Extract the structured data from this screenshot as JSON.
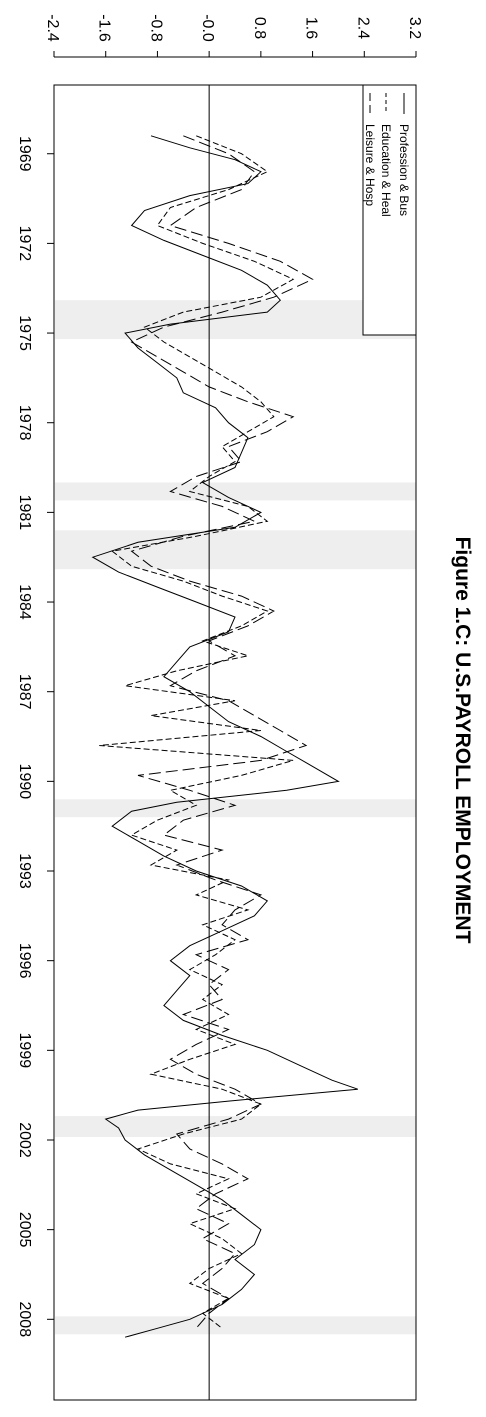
{
  "chart_data": {
    "type": "line",
    "title": "Figure 1.C: U.S.PAYROLL EMPLOYMENT",
    "xlabel": "",
    "ylabel": "",
    "orientation": "rotated-90-clockwise",
    "xlim": [
      1966.7,
      2010.7
    ],
    "ylim": [
      -2.4,
      3.2
    ],
    "x_ticks": [
      1969,
      1972,
      1975,
      1978,
      1981,
      1984,
      1987,
      1990,
      1993,
      1996,
      1999,
      2002,
      2005,
      2008
    ],
    "x_tick_labels": [
      "1969",
      "1972",
      "1975",
      "1978",
      "1981",
      "1984",
      "1987",
      "1990",
      "1993",
      "1996",
      "1999",
      "2002",
      "2005",
      "2008"
    ],
    "y_ticks": [
      -2.4,
      -1.6,
      -0.8,
      0.0,
      0.8,
      1.6,
      2.4,
      3.2
    ],
    "y_tick_labels": [
      "-2.4",
      "-1.6",
      "-0.8",
      "-0.0",
      "0.8",
      "1.6",
      "2.4",
      "3.2"
    ],
    "zero_line": 0,
    "recessions": [
      [
        1973.9,
        1975.2
      ],
      [
        1980.0,
        1980.6
      ],
      [
        1981.6,
        1982.9
      ],
      [
        1990.6,
        1991.2
      ],
      [
        2001.2,
        2001.9
      ],
      [
        2007.9,
        2008.5
      ]
    ],
    "legend_position": "top-right",
    "series": [
      {
        "name": "Profession & Bus",
        "style": "solid",
        "x": [
          1968.4,
          1968.8,
          1969.2,
          1969.6,
          1970.0,
          1970.4,
          1970.9,
          1971.4,
          1971.9,
          1972.4,
          1972.9,
          1973.4,
          1973.9,
          1974.3,
          1974.7,
          1975.0,
          1975.5,
          1976.0,
          1976.5,
          1977.0,
          1977.5,
          1978.0,
          1978.5,
          1979.0,
          1979.5,
          1980.0,
          1980.5,
          1981.0,
          1981.5,
          1982.0,
          1982.5,
          1983.0,
          1983.5,
          1984.0,
          1984.5,
          1985.0,
          1985.5,
          1986.0,
          1986.5,
          1987.0,
          1987.5,
          1988.0,
          1988.5,
          1989.0,
          1989.5,
          1990.0,
          1990.3,
          1990.7,
          1991.0,
          1991.5,
          1992.0,
          1992.5,
          1993.0,
          1993.5,
          1994.0,
          1994.5,
          1995.0,
          1995.5,
          1996.0,
          1996.5,
          1997.0,
          1997.5,
          1998.0,
          1998.5,
          1999.0,
          1999.5,
          2000.0,
          2000.3,
          2000.7,
          2001.0,
          2001.3,
          2001.6,
          2002.0,
          2002.5,
          2003.0,
          2003.5,
          2004.0,
          2004.5,
          2005.0,
          2005.5,
          2006.0,
          2006.5,
          2007.0,
          2007.5,
          2008.0,
          2008.3,
          2008.6
        ],
        "y": [
          -0.9,
          -0.3,
          0.4,
          0.8,
          0.6,
          -0.3,
          -1.0,
          -1.2,
          -0.7,
          -0.1,
          0.5,
          0.9,
          1.1,
          0.9,
          -0.6,
          -1.3,
          -1.1,
          -0.8,
          -0.5,
          -0.4,
          0.1,
          0.3,
          0.6,
          0.5,
          0.4,
          -0.1,
          0.3,
          0.8,
          0.4,
          -1.1,
          -1.8,
          -1.4,
          -0.8,
          -0.2,
          0.4,
          0.3,
          -0.3,
          -0.5,
          -0.7,
          -0.3,
          0.0,
          0.3,
          0.8,
          1.2,
          1.6,
          2.0,
          1.2,
          -0.5,
          -1.2,
          -1.5,
          -1.1,
          -0.7,
          -0.2,
          0.5,
          0.9,
          0.7,
          0.2,
          -0.3,
          -0.6,
          -0.3,
          -0.5,
          -0.7,
          -0.4,
          0.2,
          0.9,
          1.4,
          1.9,
          2.3,
          0.3,
          -1.1,
          -1.6,
          -1.4,
          -1.3,
          -1.0,
          -0.6,
          -0.2,
          0.2,
          0.5,
          0.8,
          0.7,
          0.4,
          0.7,
          0.5,
          0.2,
          -0.3,
          -0.8,
          -1.3
        ]
      },
      {
        "name": "Education & Heal",
        "style": "dashed",
        "x": [
          1968.4,
          1969.0,
          1969.6,
          1970.2,
          1970.8,
          1971.4,
          1972.0,
          1972.6,
          1973.2,
          1973.8,
          1974.3,
          1974.8,
          1975.3,
          1975.8,
          1976.3,
          1976.8,
          1977.3,
          1977.8,
          1978.3,
          1978.8,
          1979.3,
          1979.8,
          1980.3,
          1980.8,
          1981.3,
          1981.8,
          1982.3,
          1982.8,
          1983.3,
          1983.8,
          1984.3,
          1984.8,
          1985.3,
          1985.8,
          1986.3,
          1986.8,
          1987.3,
          1987.8,
          1988.3,
          1988.8,
          1989.3,
          1989.8,
          1990.3,
          1990.8,
          1991.3,
          1991.8,
          1992.3,
          1992.8,
          1993.3,
          1993.8,
          1994.3,
          1994.8,
          1995.3,
          1995.8,
          1996.3,
          1996.8,
          1997.3,
          1997.8,
          1998.3,
          1998.8,
          1999.3,
          1999.8,
          2000.3,
          2000.8,
          2001.3,
          2001.8,
          2002.3,
          2002.8,
          2003.3,
          2003.8,
          2004.3,
          2004.8,
          2005.3,
          2005.8,
          2006.3,
          2006.8,
          2007.3,
          2007.8,
          2008.3
        ],
        "y": [
          -0.2,
          0.5,
          0.9,
          0.3,
          -0.6,
          -0.8,
          -0.1,
          0.7,
          1.3,
          0.8,
          -0.4,
          -1.0,
          -0.7,
          -0.3,
          0.1,
          0.5,
          0.8,
          1.0,
          0.6,
          0.2,
          0.4,
          0.0,
          -0.3,
          0.6,
          0.9,
          -0.2,
          -1.5,
          -1.2,
          -0.4,
          0.2,
          0.9,
          0.5,
          -0.1,
          0.6,
          -0.5,
          -1.3,
          0.4,
          -0.9,
          0.8,
          -1.7,
          1.3,
          0.5,
          -0.6,
          -0.2,
          -0.8,
          -1.2,
          -0.5,
          -0.9,
          0.3,
          -0.2,
          0.6,
          -0.1,
          0.4,
          0.1,
          -0.3,
          0.2,
          -0.1,
          0.3,
          -0.2,
          0.4,
          -0.3,
          -0.9,
          0.2,
          0.8,
          0.5,
          -0.4,
          -1.1,
          -0.6,
          0.3,
          -0.2,
          0.4,
          -0.3,
          0.2,
          0.5,
          0.0,
          -0.3,
          0.3,
          -0.1,
          0.2
        ]
      },
      {
        "name": "Leisure & Hosp",
        "style": "long-dash",
        "x": [
          1968.4,
          1969.0,
          1969.6,
          1970.2,
          1970.8,
          1971.4,
          1972.0,
          1972.6,
          1973.2,
          1973.8,
          1974.3,
          1974.8,
          1975.3,
          1975.8,
          1976.3,
          1976.8,
          1977.3,
          1977.8,
          1978.3,
          1978.8,
          1979.3,
          1979.8,
          1980.3,
          1980.8,
          1981.3,
          1981.8,
          1982.3,
          1982.8,
          1983.3,
          1983.8,
          1984.3,
          1984.8,
          1985.3,
          1985.8,
          1986.3,
          1986.8,
          1987.3,
          1987.8,
          1988.3,
          1988.8,
          1989.3,
          1989.8,
          1990.3,
          1990.8,
          1991.3,
          1991.8,
          1992.3,
          1992.8,
          1993.3,
          1993.8,
          1994.3,
          1994.8,
          1995.3,
          1995.8,
          1996.3,
          1996.8,
          1997.3,
          1997.8,
          1998.3,
          1998.8,
          1999.3,
          1999.8,
          2000.3,
          2000.8,
          2001.3,
          2001.8,
          2002.3,
          2002.8,
          2003.3,
          2003.8,
          2004.3,
          2004.8,
          2005.3,
          2005.8,
          2006.3,
          2006.8,
          2007.3,
          2007.8,
          2008.3
        ],
        "y": [
          -0.4,
          0.3,
          0.7,
          0.5,
          -0.2,
          -0.6,
          0.3,
          1.1,
          1.6,
          1.0,
          0.2,
          -0.7,
          -1.2,
          -0.8,
          -0.4,
          0.0,
          0.6,
          1.3,
          0.9,
          0.3,
          0.5,
          -0.2,
          -0.6,
          0.2,
          0.7,
          -0.4,
          -1.2,
          -0.9,
          -0.3,
          0.5,
          1.0,
          0.6,
          0.0,
          0.4,
          -0.2,
          -0.6,
          0.3,
          0.7,
          1.1,
          1.5,
          0.8,
          -1.1,
          -0.3,
          0.4,
          -0.4,
          -0.7,
          0.2,
          -0.5,
          0.1,
          0.8,
          0.4,
          0.2,
          0.6,
          -0.2,
          0.3,
          0.0,
          0.2,
          -0.4,
          0.3,
          -0.2,
          -0.6,
          -0.2,
          0.4,
          0.8,
          0.3,
          -0.5,
          -0.3,
          0.2,
          0.6,
          0.1,
          -0.2,
          0.3,
          -0.1,
          0.4,
          0.2,
          -0.1,
          0.3,
          0.0,
          -0.2
        ]
      }
    ]
  }
}
